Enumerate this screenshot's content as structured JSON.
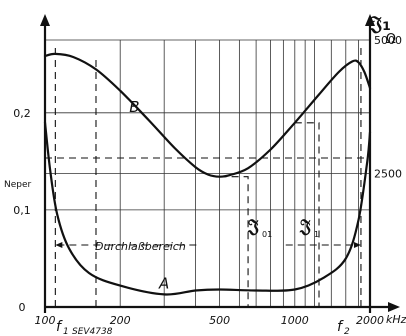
{
  "chart_data": {
    "type": "line",
    "title": "",
    "x_scale": "log",
    "xlim": [
      100,
      2000
    ],
    "x_ticks": [
      100,
      200,
      500,
      1000,
      2000
    ],
    "x_tick_labels": [
      "100",
      "200",
      "500",
      "1000",
      "2000"
    ],
    "x_unit": "kHz",
    "x_minor_ticks": [
      300,
      400,
      600,
      700,
      800,
      900,
      1100,
      1200,
      1400,
      1600,
      1800
    ],
    "left_axis": {
      "label": "Neper",
      "ylim": [
        0,
        0.275
      ],
      "ticks": [
        0,
        0.1,
        0.2
      ],
      "tick_labels": [
        "0",
        "0,1",
        "0,2"
      ]
    },
    "right_axis": {
      "symbol": "𝔍₁",
      "unit": "Ω",
      "ylim": [
        0,
        5000
      ],
      "ticks": [
        2500,
        5000
      ],
      "tick_labels": [
        "2500",
        "5000"
      ]
    },
    "grid": true,
    "series": [
      {
        "name": "A",
        "axis": "left",
        "x": [
          100,
          105,
          112,
          125,
          150,
          200,
          300,
          400,
          500,
          700,
          1000,
          1300,
          1600,
          1800,
          1950,
          2000
        ],
        "y": [
          0.19,
          0.14,
          0.095,
          0.06,
          0.035,
          0.022,
          0.013,
          0.017,
          0.018,
          0.017,
          0.018,
          0.03,
          0.05,
          0.09,
          0.15,
          0.18
        ]
      },
      {
        "name": "B",
        "axis": "right",
        "x": [
          100,
          110,
          130,
          160,
          200,
          260,
          330,
          400,
          450,
          500,
          550,
          650,
          800,
          1000,
          1250,
          1500,
          1700,
          1800,
          1900,
          2000
        ],
        "y": [
          4700,
          4740,
          4680,
          4450,
          4050,
          3500,
          2980,
          2620,
          2480,
          2440,
          2470,
          2600,
          2950,
          3450,
          3980,
          4400,
          4600,
          4580,
          4400,
          4100
        ]
      }
    ],
    "annotations": {
      "passband": "Durchlaßbereich",
      "f1": "f",
      "f1_sub": "1",
      "f2": "f",
      "f2_sub": "2",
      "z01": "𝔍",
      "z01_sub": "01",
      "z1": "𝔍",
      "z1_sub": "1",
      "reference": "SEV4738"
    }
  }
}
